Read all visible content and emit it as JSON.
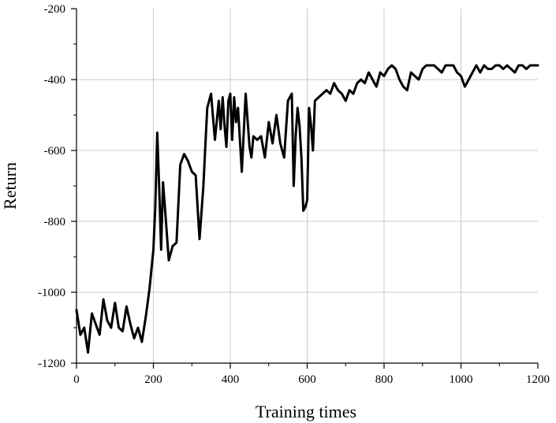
{
  "chart_data": {
    "type": "line",
    "title": "",
    "xlabel": "Training times",
    "ylabel": "Return",
    "xlim": [
      0,
      1200
    ],
    "ylim": [
      -1200,
      -200
    ],
    "x_ticks": [
      0,
      200,
      400,
      600,
      800,
      1000,
      1200
    ],
    "y_ticks": [
      -1200,
      -1000,
      -800,
      -600,
      -400,
      -200
    ],
    "x_tick_labels": [
      "0",
      "200",
      "400",
      "600",
      "800",
      "1000",
      "1200"
    ],
    "y_tick_labels": [
      "-1200",
      "-1000",
      "-800",
      "-600",
      "-400",
      "-200"
    ],
    "grid": true,
    "legend": "none",
    "colors": {
      "line": "#000000",
      "grid": "#c8c8c8",
      "axis": "#000000",
      "background": "#ffffff"
    },
    "series": [
      {
        "x": [
          0,
          10,
          20,
          30,
          40,
          50,
          60,
          70,
          80,
          90,
          100,
          110,
          120,
          130,
          140,
          150,
          160,
          170,
          180,
          190,
          200,
          205,
          210,
          215,
          220,
          225,
          230,
          240,
          250,
          260,
          270,
          280,
          290,
          300,
          310,
          320,
          330,
          335,
          340,
          350,
          360,
          370,
          375,
          380,
          385,
          390,
          395,
          400,
          405,
          410,
          415,
          420,
          430,
          440,
          450,
          455,
          460,
          470,
          480,
          490,
          500,
          510,
          520,
          530,
          540,
          550,
          560,
          565,
          570,
          575,
          580,
          585,
          590,
          595,
          600,
          605,
          610,
          615,
          620,
          630,
          640,
          650,
          660,
          670,
          680,
          690,
          700,
          710,
          720,
          730,
          740,
          750,
          760,
          770,
          780,
          790,
          800,
          810,
          820,
          830,
          840,
          850,
          860,
          870,
          880,
          890,
          900,
          910,
          920,
          930,
          940,
          950,
          960,
          970,
          980,
          990,
          1000,
          1010,
          1020,
          1030,
          1040,
          1050,
          1060,
          1070,
          1080,
          1090,
          1100,
          1110,
          1120,
          1130,
          1140,
          1150,
          1160,
          1170,
          1180,
          1190,
          1200
        ],
        "y": [
          -1050,
          -1120,
          -1100,
          -1170,
          -1060,
          -1090,
          -1120,
          -1020,
          -1080,
          -1100,
          -1030,
          -1100,
          -1110,
          -1040,
          -1090,
          -1130,
          -1100,
          -1140,
          -1070,
          -990,
          -880,
          -760,
          -550,
          -700,
          -880,
          -690,
          -760,
          -910,
          -870,
          -860,
          -640,
          -610,
          -630,
          -660,
          -670,
          -850,
          -700,
          -590,
          -480,
          -440,
          -570,
          -460,
          -540,
          -450,
          -530,
          -590,
          -460,
          -440,
          -570,
          -450,
          -520,
          -480,
          -660,
          -440,
          -590,
          -620,
          -560,
          -570,
          -560,
          -620,
          -520,
          -580,
          -500,
          -580,
          -620,
          -460,
          -440,
          -700,
          -560,
          -480,
          -530,
          -620,
          -770,
          -760,
          -740,
          -480,
          -530,
          -600,
          -460,
          -450,
          -440,
          -430,
          -440,
          -410,
          -430,
          -440,
          -460,
          -430,
          -440,
          -410,
          -400,
          -410,
          -380,
          -400,
          -420,
          -380,
          -390,
          -370,
          -360,
          -370,
          -400,
          -420,
          -430,
          -380,
          -390,
          -400,
          -370,
          -360,
          -360,
          -360,
          -370,
          -380,
          -360,
          -360,
          -360,
          -380,
          -390,
          -420,
          -400,
          -380,
          -360,
          -380,
          -360,
          -370,
          -370,
          -360,
          -360,
          -370,
          -360,
          -370,
          -380,
          -360,
          -360,
          -370,
          -360,
          -360,
          -360
        ]
      }
    ]
  }
}
